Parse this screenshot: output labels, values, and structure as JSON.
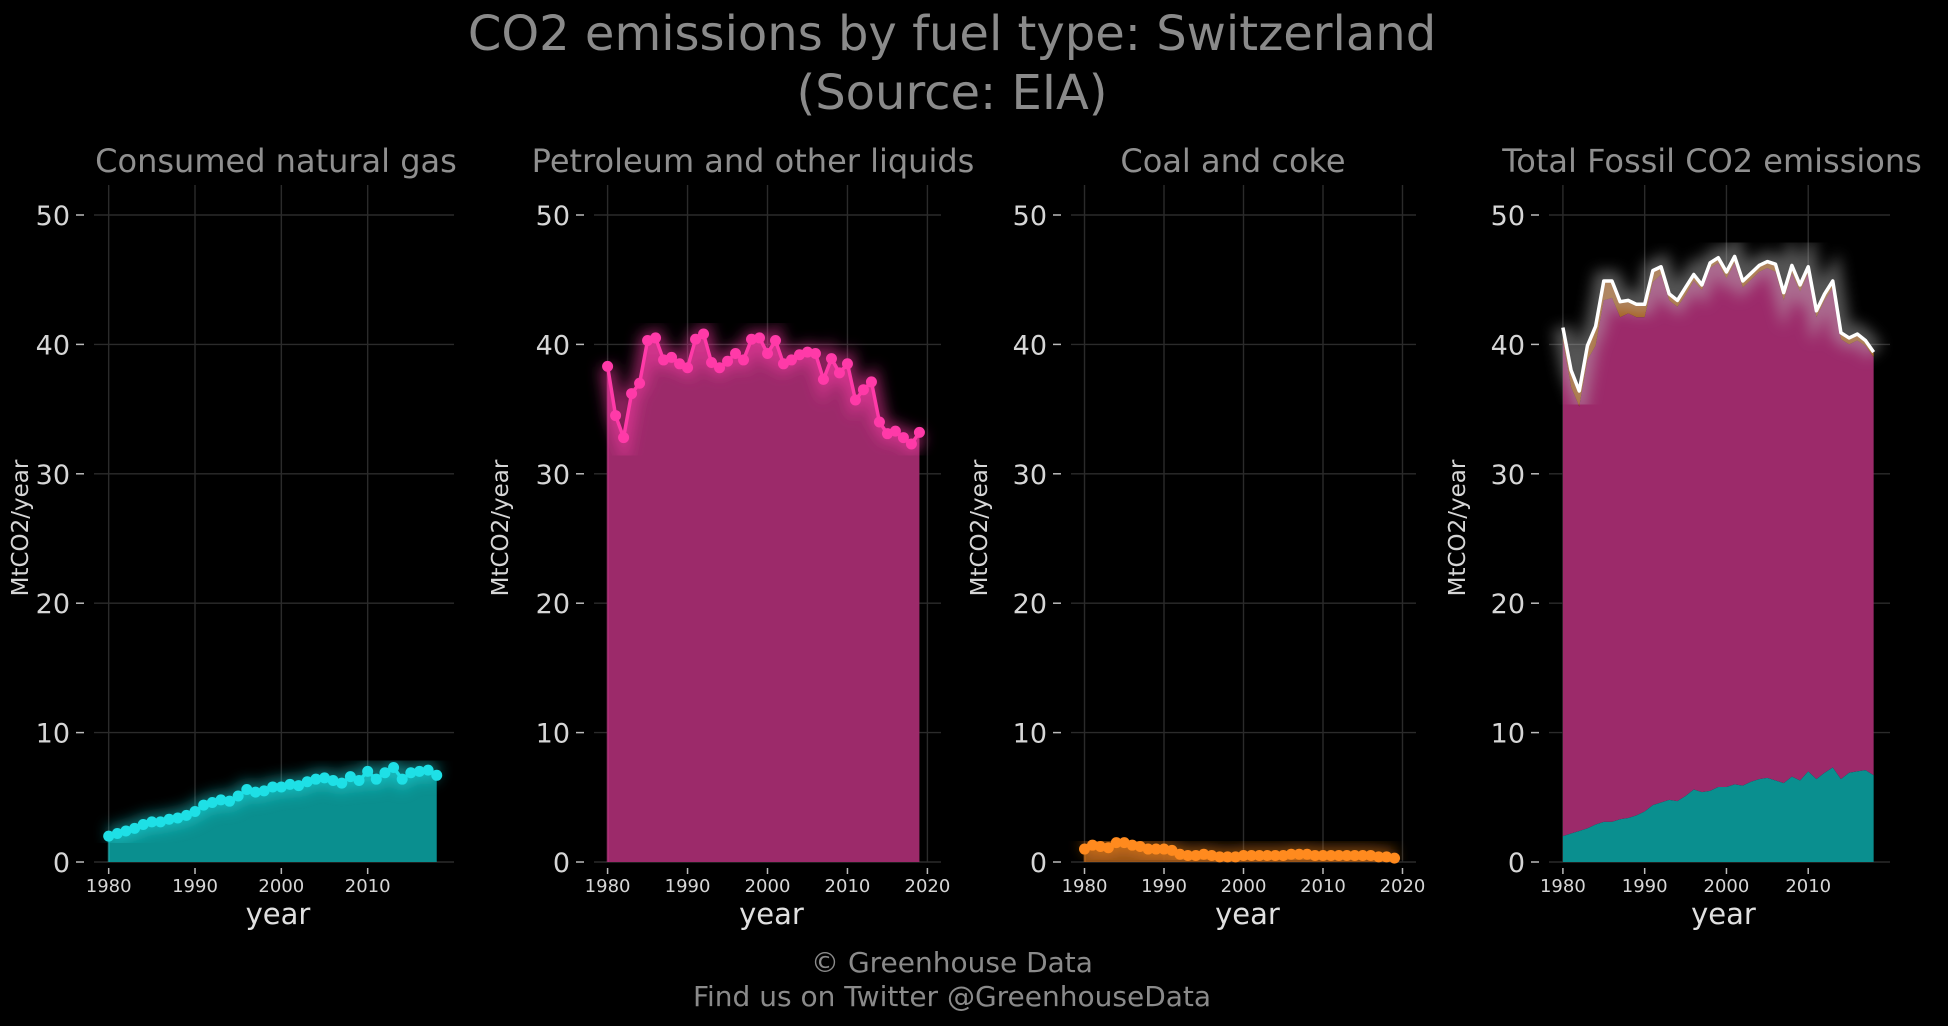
{
  "figure": {
    "title_line1": "CO2 emissions by fuel type: Switzerland",
    "title_line2": "(Source: EIA)",
    "credit_line1": "© Greenhouse Data",
    "credit_line2": "Find us on Twitter @GreenhouseData"
  },
  "colors": {
    "background": "#000000",
    "natural_gas": "#1ee0e6",
    "natural_gas_fill": "#0a8f8f",
    "petroleum": "#ff3aa8",
    "petroleum_fill": "#9c2a6a",
    "coal": "#ff8a1e",
    "coal_fill": "#a55a18",
    "total_line": "#ffffff"
  },
  "chart_data": [
    {
      "type": "area",
      "title": "Consumed natural gas",
      "xlabel": "year",
      "ylabel": "MtCO2/year",
      "ylim": [
        0,
        50
      ],
      "yticks": [
        0,
        10,
        20,
        30,
        40,
        50
      ],
      "xticks": [
        1980,
        1990,
        2000,
        2010
      ],
      "x": [
        1980,
        1981,
        1982,
        1983,
        1984,
        1985,
        1986,
        1987,
        1988,
        1989,
        1990,
        1991,
        1992,
        1993,
        1994,
        1995,
        1996,
        1997,
        1998,
        1999,
        2000,
        2001,
        2002,
        2003,
        2004,
        2005,
        2006,
        2007,
        2008,
        2009,
        2010,
        2011,
        2012,
        2013,
        2014,
        2015,
        2016,
        2017,
        2018
      ],
      "series": [
        {
          "values": [
            2.0,
            2.2,
            2.4,
            2.6,
            2.9,
            3.1,
            3.1,
            3.3,
            3.4,
            3.6,
            3.9,
            4.4,
            4.6,
            4.8,
            4.7,
            5.1,
            5.6,
            5.4,
            5.5,
            5.8,
            5.8,
            6.0,
            5.9,
            6.2,
            6.4,
            6.5,
            6.3,
            6.1,
            6.6,
            6.3,
            7.0,
            6.4,
            6.9,
            7.3,
            6.4,
            6.9,
            7.0,
            7.1,
            6.7
          ]
        }
      ]
    },
    {
      "type": "area",
      "title": "Petroleum and other liquids",
      "xlabel": "year",
      "ylabel": "MtCO2/year",
      "ylim": [
        0,
        50
      ],
      "yticks": [
        0,
        10,
        20,
        30,
        40,
        50
      ],
      "xticks": [
        1980,
        1990,
        2000,
        2010,
        2020
      ],
      "x": [
        1980,
        1981,
        1982,
        1983,
        1984,
        1985,
        1986,
        1987,
        1988,
        1989,
        1990,
        1991,
        1992,
        1993,
        1994,
        1995,
        1996,
        1997,
        1998,
        1999,
        2000,
        2001,
        2002,
        2003,
        2004,
        2005,
        2006,
        2007,
        2008,
        2009,
        2010,
        2011,
        2012,
        2013,
        2014,
        2015,
        2016,
        2017,
        2018,
        2019
      ],
      "series": [
        {
          "values": [
            38.3,
            34.5,
            32.8,
            36.2,
            37.0,
            40.3,
            40.5,
            38.8,
            39.0,
            38.5,
            38.2,
            40.4,
            40.8,
            38.6,
            38.2,
            38.7,
            39.3,
            38.8,
            40.4,
            40.5,
            39.3,
            40.3,
            38.5,
            38.8,
            39.2,
            39.4,
            39.3,
            37.3,
            38.9,
            37.8,
            38.5,
            35.7,
            36.5,
            37.1,
            34.0,
            33.1,
            33.3,
            32.8,
            32.3,
            33.2
          ]
        }
      ]
    },
    {
      "type": "area",
      "title": "Coal and coke",
      "xlabel": "year",
      "ylabel": "MtCO2/year",
      "ylim": [
        0,
        50
      ],
      "yticks": [
        0,
        10,
        20,
        30,
        40,
        50
      ],
      "xticks": [
        1980,
        1990,
        2000,
        2010,
        2020
      ],
      "x": [
        1980,
        1981,
        1982,
        1983,
        1984,
        1985,
        1986,
        1987,
        1988,
        1989,
        1990,
        1991,
        1992,
        1993,
        1994,
        1995,
        1996,
        1997,
        1998,
        1999,
        2000,
        2001,
        2002,
        2003,
        2004,
        2005,
        2006,
        2007,
        2008,
        2009,
        2010,
        2011,
        2012,
        2013,
        2014,
        2015,
        2016,
        2017,
        2018,
        2019
      ],
      "series": [
        {
          "values": [
            1.0,
            1.3,
            1.2,
            1.1,
            1.5,
            1.5,
            1.3,
            1.2,
            1.0,
            1.0,
            1.0,
            0.9,
            0.6,
            0.5,
            0.5,
            0.6,
            0.5,
            0.4,
            0.4,
            0.4,
            0.5,
            0.5,
            0.5,
            0.5,
            0.5,
            0.5,
            0.6,
            0.6,
            0.6,
            0.5,
            0.5,
            0.5,
            0.5,
            0.5,
            0.5,
            0.5,
            0.5,
            0.4,
            0.4,
            0.3
          ]
        }
      ]
    },
    {
      "type": "area",
      "title": "Total Fossil CO2 emissions",
      "xlabel": "year",
      "ylabel": "MtCO2/year",
      "ylim": [
        0,
        50
      ],
      "yticks": [
        0,
        10,
        20,
        30,
        40,
        50
      ],
      "xticks": [
        1980,
        1990,
        2000,
        2010
      ],
      "stacked": true,
      "x": [
        1980,
        1981,
        1982,
        1983,
        1984,
        1985,
        1986,
        1987,
        1988,
        1989,
        1990,
        1991,
        1992,
        1993,
        1994,
        1995,
        1996,
        1997,
        1998,
        1999,
        2000,
        2001,
        2002,
        2003,
        2004,
        2005,
        2006,
        2007,
        2008,
        2009,
        2010,
        2011,
        2012,
        2013,
        2014,
        2015,
        2016,
        2017,
        2018
      ],
      "series": [
        {
          "values": [
            2.0,
            2.2,
            2.4,
            2.6,
            2.9,
            3.1,
            3.1,
            3.3,
            3.4,
            3.6,
            3.9,
            4.4,
            4.6,
            4.8,
            4.7,
            5.1,
            5.6,
            5.4,
            5.5,
            5.8,
            5.8,
            6.0,
            5.9,
            6.2,
            6.4,
            6.5,
            6.3,
            6.1,
            6.6,
            6.3,
            7.0,
            6.4,
            6.9,
            7.3,
            6.4,
            6.9,
            7.0,
            7.1,
            6.7
          ]
        },
        {
          "values": [
            38.3,
            34.5,
            32.8,
            36.2,
            37.0,
            40.3,
            40.5,
            38.8,
            39.0,
            38.5,
            38.2,
            40.4,
            40.8,
            38.6,
            38.2,
            38.7,
            39.3,
            38.8,
            40.4,
            40.5,
            39.3,
            40.3,
            38.5,
            38.8,
            39.2,
            39.4,
            39.3,
            37.3,
            38.9,
            37.8,
            38.5,
            35.7,
            36.5,
            37.1,
            34.0,
            33.1,
            33.3,
            32.8,
            32.3
          ]
        },
        {
          "values": [
            1.0,
            1.3,
            1.2,
            1.1,
            1.5,
            1.5,
            1.3,
            1.2,
            1.0,
            1.0,
            1.0,
            0.9,
            0.6,
            0.5,
            0.5,
            0.6,
            0.5,
            0.4,
            0.4,
            0.4,
            0.5,
            0.5,
            0.5,
            0.5,
            0.5,
            0.5,
            0.6,
            0.6,
            0.6,
            0.5,
            0.5,
            0.5,
            0.5,
            0.5,
            0.5,
            0.5,
            0.5,
            0.4,
            0.4
          ]
        }
      ],
      "total": [
        41.3,
        38.0,
        36.4,
        39.9,
        41.4,
        44.9,
        44.9,
        43.3,
        43.4,
        43.1,
        43.1,
        45.7,
        46.0,
        43.9,
        43.4,
        44.4,
        45.4,
        44.6,
        46.3,
        46.7,
        45.6,
        46.8,
        44.9,
        45.5,
        46.1,
        46.4,
        46.2,
        44.0,
        46.1,
        44.6,
        46.0,
        42.6,
        43.9,
        44.9,
        40.9,
        40.5,
        40.8,
        40.3,
        39.4
      ]
    }
  ]
}
